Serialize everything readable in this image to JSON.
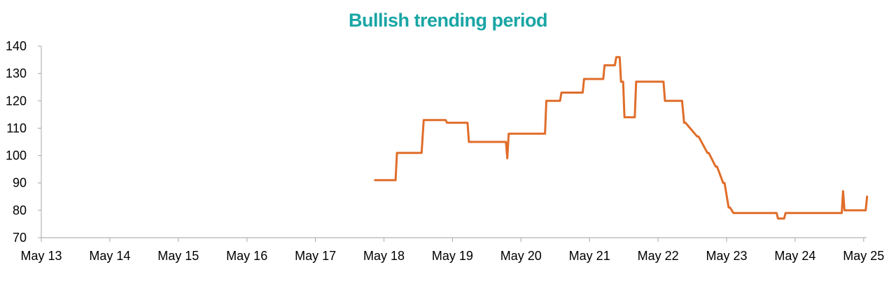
{
  "chart_data": {
    "type": "line",
    "title": "Bullish trending period",
    "xlabel": "",
    "ylabel": "",
    "ylim": [
      70,
      140
    ],
    "yticks": [
      70,
      80,
      90,
      100,
      110,
      120,
      130,
      140
    ],
    "xticks": [
      "May 13",
      "May 14",
      "May 15",
      "May 16",
      "May 17",
      "May 18",
      "May 19",
      "May 20",
      "May 21",
      "May 22",
      "May 23",
      "May 24",
      "May 25"
    ],
    "grid": false,
    "legend": "none",
    "series": [
      {
        "x": [
          17.87,
          18.17,
          18.19,
          18.55,
          18.58,
          18.9,
          18.92,
          19.22,
          19.24,
          19.78,
          19.8,
          19.82,
          19.84,
          20.35,
          20.37,
          20.57,
          20.59,
          20.9,
          20.92,
          21.2,
          21.22,
          21.37,
          21.39,
          21.44,
          21.46,
          21.49,
          21.51,
          21.53,
          21.55,
          21.66,
          21.68,
          22.08,
          22.1,
          22.33,
          22.35,
          22.38,
          22.4,
          22.57,
          22.59,
          22.72,
          22.74,
          22.84,
          22.86,
          22.95,
          22.97,
          23.03,
          23.05,
          23.1,
          23.12,
          23.73,
          23.75,
          23.84,
          23.86,
          24.66,
          24.68,
          24.7,
          24.72,
          25.03,
          25.05
        ],
        "y": [
          91,
          91,
          101,
          101,
          113,
          113,
          112,
          112,
          105,
          105,
          99,
          108,
          108,
          108,
          120,
          120,
          123,
          123,
          128,
          128,
          133,
          133,
          136,
          136,
          127,
          127,
          114,
          114,
          114,
          114,
          127,
          127,
          120,
          120,
          120,
          112,
          112,
          107,
          107,
          101,
          101,
          96,
          96,
          90,
          90,
          81,
          81,
          79,
          79,
          79,
          77,
          77,
          79,
          79,
          79,
          87,
          80,
          80,
          85
        ]
      }
    ],
    "colors": {
      "line": "#e06d2a",
      "title": "#1aa5a5",
      "axis": "#b4b4b4"
    }
  }
}
